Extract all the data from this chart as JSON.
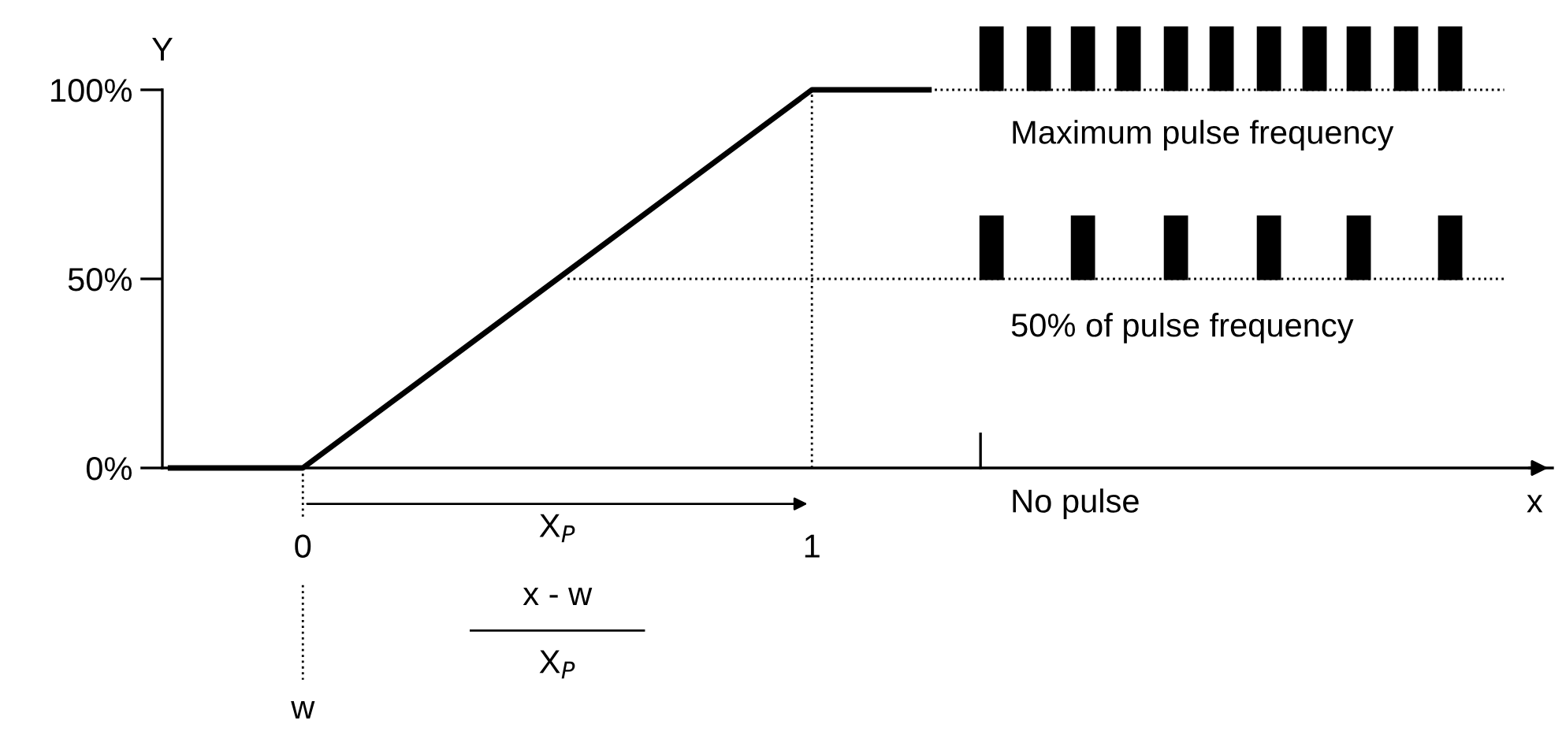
{
  "chart_data": {
    "type": "line",
    "xlabel": "x",
    "ylabel": "Y",
    "xlim": [
      -0.276,
      2.455
    ],
    "ylim": [
      0,
      100
    ],
    "xticks": [
      0,
      1
    ],
    "yticks": [
      {
        "value": 0,
        "label": "0%"
      },
      {
        "value": 50,
        "label": "50%"
      },
      {
        "value": 100,
        "label": "100%"
      }
    ],
    "grid": false,
    "marker": "none",
    "series": [
      {
        "color": "#000000",
        "x": [
          -0.26,
          0,
          1,
          1.23
        ],
        "values": [
          0,
          0,
          100,
          100
        ],
        "line_style": "solid"
      },
      {
        "color": "#000000",
        "x": [
          1,
          1
        ],
        "values": [
          0,
          100
        ],
        "line_style": "dotted"
      },
      {
        "color": "#000000",
        "x": [
          1.23,
          2.36
        ],
        "values": [
          100,
          100
        ],
        "line_style": "dotted"
      },
      {
        "color": "#000000",
        "x": [
          0.52,
          2.36
        ],
        "values": [
          50,
          50
        ],
        "line_style": "dotted"
      }
    ],
    "annotations": [
      "Maximum pulse frequency",
      "50% of pulse frequency",
      "No pulse",
      "X$_{P}$",
      "x - w",
      "X$_{P}$",
      "w"
    ]
  }
}
